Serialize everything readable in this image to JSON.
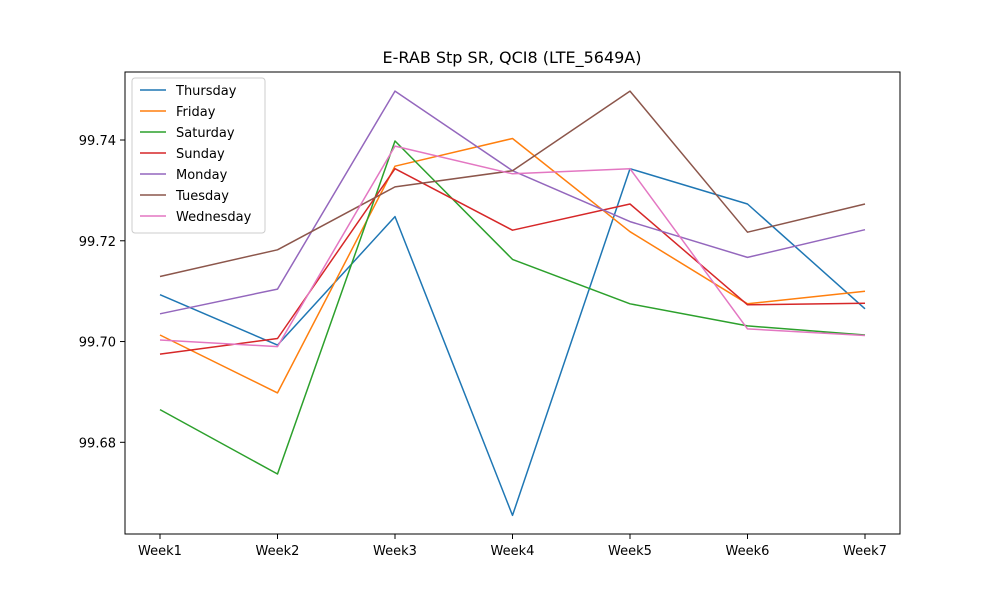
{
  "chart_data": {
    "type": "line",
    "title": "E-RAB Stp SR, QCI8 (LTE_5649A)",
    "xlabel": "",
    "ylabel": "",
    "categories": [
      "Week1",
      "Week2",
      "Week3",
      "Week4",
      "Week5",
      "Week6",
      "Week7"
    ],
    "ylim": [
      99.6618,
      99.7535
    ],
    "yticks": [
      "99.68",
      "99.70",
      "99.72",
      "99.74"
    ],
    "ytick_values": [
      99.68,
      99.7,
      99.72,
      99.74
    ],
    "grid": false,
    "legend_position": "top-left",
    "series": [
      {
        "name": "Thursday",
        "color": "#1f77b4",
        "values": [
          99.7093,
          99.6993,
          99.7248,
          99.6655,
          99.7343,
          99.7273,
          99.7065
        ]
      },
      {
        "name": "Friday",
        "color": "#ff7f0e",
        "values": [
          99.7013,
          99.6898,
          99.7348,
          99.7403,
          99.7218,
          99.7075,
          99.71
        ]
      },
      {
        "name": "Saturday",
        "color": "#2ca02c",
        "values": [
          99.6865,
          99.6737,
          99.7398,
          99.7163,
          99.7075,
          99.7031,
          99.7013
        ]
      },
      {
        "name": "Sunday",
        "color": "#d62728",
        "values": [
          99.6975,
          99.7006,
          99.7343,
          99.7221,
          99.7273,
          99.7073,
          99.7076
        ]
      },
      {
        "name": "Monday",
        "color": "#9467bd",
        "values": [
          99.7055,
          99.7104,
          99.7497,
          99.7339,
          99.7238,
          99.7167,
          99.7222
        ]
      },
      {
        "name": "Tuesday",
        "color": "#8c564b",
        "values": [
          99.7129,
          99.7182,
          99.7307,
          99.7339,
          99.7497,
          99.7217,
          99.7273
        ]
      },
      {
        "name": "Wednesday",
        "color": "#e377c2",
        "values": [
          99.7003,
          99.699,
          99.7388,
          99.7333,
          99.7343,
          99.7025,
          99.7012
        ]
      }
    ]
  }
}
